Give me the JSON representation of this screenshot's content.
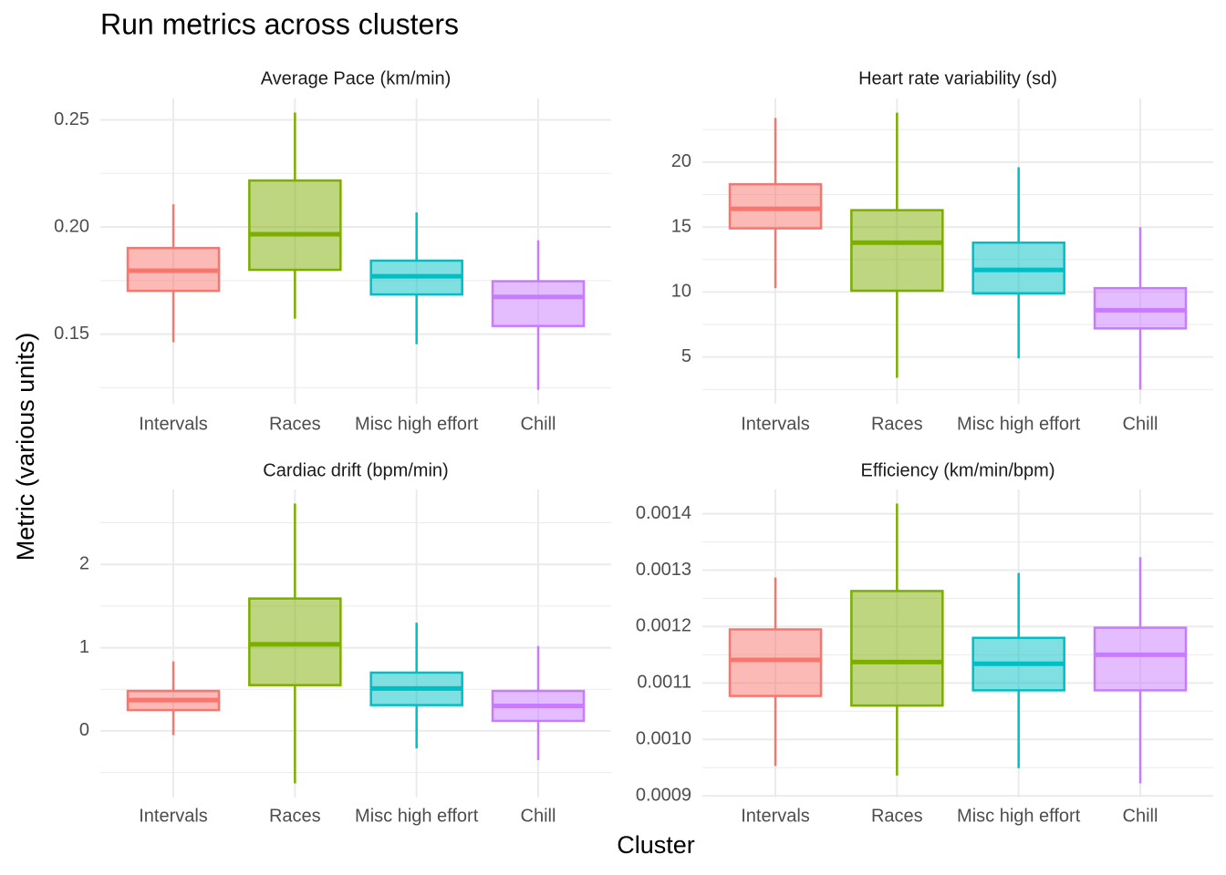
{
  "title": "Run metrics across clusters",
  "xlabel": "Cluster",
  "ylabel": "Metric (various units)",
  "chart_data": [
    {
      "type": "box",
      "title": "Average Pace (km/min)",
      "categories": [
        "Intervals",
        "Races",
        "Misc high effort",
        "Chill"
      ],
      "colors": [
        "#F8766D",
        "#7CAE00",
        "#00BFC4",
        "#C77CFF"
      ],
      "boxes": [
        {
          "min": 0.1462,
          "q1": 0.1702,
          "median": 0.1796,
          "q3": 0.1902,
          "max": 0.2106
        },
        {
          "min": 0.1572,
          "q1": 0.18,
          "median": 0.1966,
          "q3": 0.2217,
          "max": 0.2534
        },
        {
          "min": 0.1453,
          "q1": 0.1685,
          "median": 0.177,
          "q3": 0.1843,
          "max": 0.2068
        },
        {
          "min": 0.124,
          "q1": 0.1538,
          "median": 0.1674,
          "q3": 0.1747,
          "max": 0.1938
        }
      ],
      "ylim": [
        0.1175,
        0.26
      ],
      "yticks": [
        0.15,
        {
          "value": 0.2,
          "label": "0.20"
        },
        0.25
      ],
      "grid": true
    },
    {
      "type": "box",
      "title": "Heart rate variability (sd)",
      "categories": [
        "Intervals",
        "Races",
        "Misc high effort",
        "Chill"
      ],
      "colors": [
        "#F8766D",
        "#7CAE00",
        "#00BFC4",
        "#C77CFF"
      ],
      "boxes": [
        {
          "min": 10.3,
          "q1": 14.9,
          "median": 16.4,
          "q3": 18.3,
          "max": 23.4
        },
        {
          "min": 3.4,
          "q1": 10.1,
          "median": 13.8,
          "q3": 16.3,
          "max": 23.8
        },
        {
          "min": 4.9,
          "q1": 9.9,
          "median": 11.7,
          "q3": 13.8,
          "max": 19.6
        },
        {
          "min": 2.5,
          "q1": 7.2,
          "median": 8.6,
          "q3": 10.3,
          "max": 15.0
        }
      ],
      "ylim": [
        1.4,
        24.9
      ],
      "yticks": [
        5,
        10,
        15,
        20
      ],
      "grid": true
    },
    {
      "type": "box",
      "title": "Cardiac drift (bpm/min)",
      "categories": [
        "Intervals",
        "Races",
        "Misc high effort",
        "Chill"
      ],
      "colors": [
        "#F8766D",
        "#7CAE00",
        "#00BFC4",
        "#C77CFF"
      ],
      "boxes": [
        {
          "min": -0.05,
          "q1": 0.25,
          "median": 0.37,
          "q3": 0.48,
          "max": 0.835
        },
        {
          "min": -0.63,
          "q1": 0.55,
          "median": 1.04,
          "q3": 1.59,
          "max": 2.73
        },
        {
          "min": -0.21,
          "q1": 0.31,
          "median": 0.51,
          "q3": 0.7,
          "max": 1.3
        },
        {
          "min": -0.35,
          "q1": 0.12,
          "median": 0.3,
          "q3": 0.48,
          "max": 1.02
        }
      ],
      "ylim": [
        -0.8,
        2.9
      ],
      "yticks": [
        0,
        1,
        2
      ],
      "grid": true
    },
    {
      "type": "box",
      "title": "Efficiency (km/min/bpm)",
      "categories": [
        "Intervals",
        "Races",
        "Misc high effort",
        "Chill"
      ],
      "colors": [
        "#F8766D",
        "#7CAE00",
        "#00BFC4",
        "#C77CFF"
      ],
      "boxes": [
        {
          "min": 0.000953,
          "q1": 0.001077,
          "median": 0.001141,
          "q3": 0.001195,
          "max": 0.001287
        },
        {
          "min": 0.000936,
          "q1": 0.00106,
          "median": 0.001137,
          "q3": 0.001263,
          "max": 0.001418
        },
        {
          "min": 0.000949,
          "q1": 0.001087,
          "median": 0.001134,
          "q3": 0.00118,
          "max": 0.001295
        },
        {
          "min": 0.000922,
          "q1": 0.001087,
          "median": 0.00115,
          "q3": 0.001198,
          "max": 0.001323
        }
      ],
      "ylim": [
        0.000897,
        0.001443
      ],
      "yticks": [
        0.0009,
        {
          "value": 0.001,
          "label": "0.0010"
        },
        0.0011,
        0.0012,
        0.0013,
        0.0014
      ],
      "grid": true
    }
  ]
}
